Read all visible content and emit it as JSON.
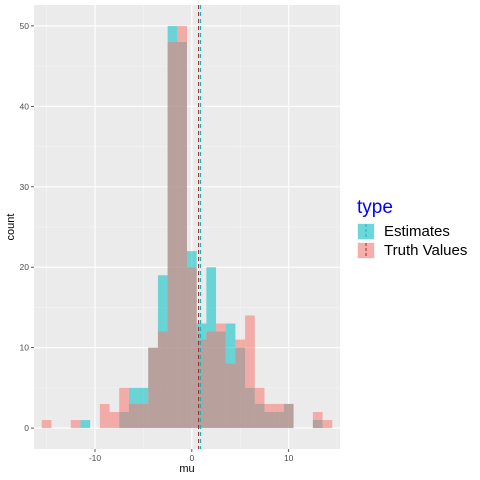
{
  "chart_data": {
    "type": "bar",
    "subtype": "overlapping histogram",
    "xlabel": "mu",
    "ylabel": "count",
    "xlim": [
      -16.3,
      15.3
    ],
    "ylim": [
      -2.6,
      52.6
    ],
    "x_ticks": [
      -10,
      0,
      10
    ],
    "y_ticks": [
      0,
      10,
      20,
      30,
      40,
      50
    ],
    "grid": true,
    "legend_position": "right",
    "legend_title": "type",
    "legend_title_color": "#0000ff",
    "bin_edges_start": -15.5,
    "bin_width": 1,
    "series": [
      {
        "name": "Estimates",
        "color": "#00BFC4",
        "values": [
          0,
          0,
          0,
          0,
          1,
          0,
          0,
          0,
          2,
          5,
          5,
          10,
          19,
          50,
          48,
          22,
          13,
          20,
          12,
          13,
          10,
          5,
          3,
          2,
          2,
          3,
          0,
          0,
          1,
          0
        ]
      },
      {
        "name": "Truth Values",
        "color": "#F8766D",
        "values": [
          1,
          0,
          0,
          1,
          0,
          0,
          3,
          2,
          5,
          3,
          3,
          10,
          12,
          48,
          50,
          20,
          11,
          12,
          13,
          8,
          11,
          14,
          5,
          3,
          3,
          3,
          0,
          0,
          2,
          1
        ]
      }
    ],
    "reference_lines": [
      {
        "series": "Estimates",
        "x": 0.9,
        "color": "#00BFC4",
        "style": "dashed"
      },
      {
        "series": "Truth Values",
        "x": 0.7,
        "color": "#B22222",
        "style": "dashed"
      }
    ]
  }
}
